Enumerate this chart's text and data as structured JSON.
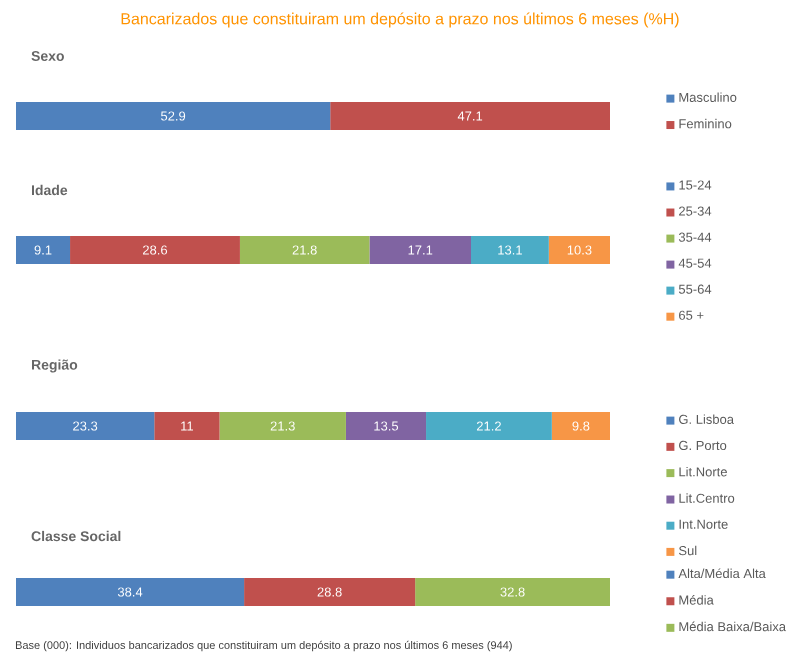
{
  "chart_data": [
    {
      "type": "bar",
      "title": "Bancarizados que constituiram um depósito a prazo nos últimos 6 meses (%H)",
      "subtitle": "Sexo",
      "orientation": "horizontal",
      "stacked": true,
      "categories": [
        null
      ],
      "data_labels": true,
      "legend": "right",
      "series": [
        {
          "name": "Masculino",
          "color": "#4f81bd",
          "values": [
            52.9
          ]
        },
        {
          "name": "Feminino",
          "color": "#c0504d",
          "values": [
            47.1
          ]
        }
      ]
    },
    {
      "type": "bar",
      "subtitle": "Idade",
      "orientation": "horizontal",
      "stacked": true,
      "categories": [
        null
      ],
      "data_labels": true,
      "legend": "right",
      "series": [
        {
          "name": "15-24",
          "color": "#4f81bd",
          "values": [
            9.1
          ]
        },
        {
          "name": "25-34",
          "color": "#c0504d",
          "values": [
            28.6
          ]
        },
        {
          "name": "35-44",
          "color": "#9bbb59",
          "values": [
            21.8
          ]
        },
        {
          "name": "45-54",
          "color": "#8064a2",
          "values": [
            17.1
          ]
        },
        {
          "name": "55-64",
          "color": "#4bacc6",
          "values": [
            13.1
          ]
        },
        {
          "name": "65 +",
          "color": "#f79646",
          "values": [
            10.3
          ]
        }
      ]
    },
    {
      "type": "bar",
      "subtitle": "Região",
      "orientation": "horizontal",
      "stacked": true,
      "categories": [
        null
      ],
      "data_labels": true,
      "legend": "right",
      "series": [
        {
          "name": "G. Lisboa",
          "color": "#4f81bd",
          "values": [
            23.3
          ]
        },
        {
          "name": "G. Porto",
          "color": "#c0504d",
          "values": [
            11
          ]
        },
        {
          "name": "Lit.Norte",
          "color": "#9bbb59",
          "values": [
            21.3
          ]
        },
        {
          "name": "Lit.Centro",
          "color": "#8064a2",
          "values": [
            13.5
          ]
        },
        {
          "name": "Int.Norte",
          "color": "#4bacc6",
          "values": [
            21.2
          ]
        },
        {
          "name": "Sul",
          "color": "#f79646",
          "values": [
            9.8
          ]
        }
      ]
    },
    {
      "type": "bar",
      "subtitle": "Classe Social",
      "orientation": "horizontal",
      "stacked": true,
      "categories": [
        null
      ],
      "data_labels": true,
      "legend": "right",
      "annotations": [
        "Base (000): Individuos bancarizados  que  constituiram um depósito a prazo nos últimos 6 meses (944)"
      ],
      "series": [
        {
          "name": "Alta/Média Alta",
          "color": "#4f81bd",
          "values": [
            38.4
          ]
        },
        {
          "name": "Média",
          "color": "#c0504d",
          "values": [
            28.8
          ]
        },
        {
          "name": "Média Baixa/Baixa",
          "color": "#9bbb59",
          "values": [
            32.8
          ]
        }
      ]
    }
  ]
}
